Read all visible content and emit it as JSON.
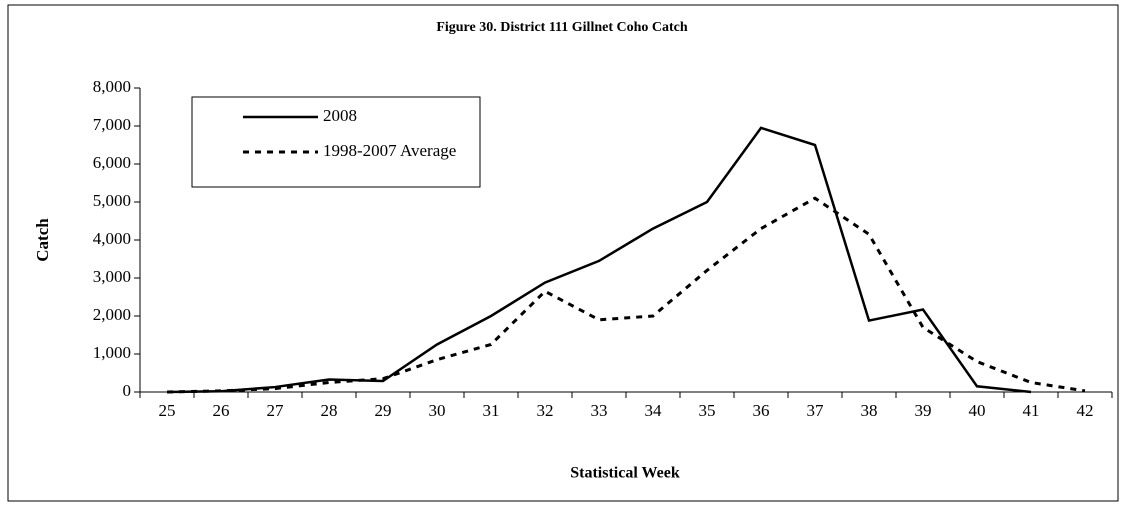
{
  "chart_data": {
    "type": "line",
    "title": "Figure 30.  District 111 Gillnet Coho Catch",
    "x_label": "Statistical Week",
    "y_label": "Catch",
    "categories": [
      "25",
      "26",
      "27",
      "28",
      "29",
      "30",
      "31",
      "32",
      "33",
      "34",
      "35",
      "36",
      "37",
      "38",
      "39",
      "40",
      "41",
      "42"
    ],
    "series": [
      {
        "name": "2008",
        "color": "#000000",
        "dash": "solid",
        "values": [
          0,
          20,
          130,
          330,
          290,
          1250,
          2000,
          2880,
          3450,
          4300,
          5000,
          6950,
          6500,
          1880,
          2170,
          150,
          0,
          null
        ]
      },
      {
        "name": "1998-2007 Average",
        "color": "#000000",
        "dash": "dashed",
        "values": [
          0,
          30,
          90,
          250,
          350,
          850,
          1250,
          2650,
          1900,
          2000,
          3200,
          4300,
          5100,
          4150,
          1700,
          800,
          250,
          30
        ]
      }
    ],
    "ylim": [
      0,
      8000
    ],
    "yticks": [
      0,
      {
        "value": 1000,
        "label": "1,000"
      },
      {
        "value": 2000,
        "label": "2,000"
      },
      {
        "value": 3000,
        "label": "3,000"
      },
      {
        "value": 4000,
        "label": "4,000"
      },
      {
        "value": 5000,
        "label": "5,000"
      },
      {
        "value": 6000,
        "label": "6,000"
      },
      {
        "value": 7000,
        "label": "7,000"
      },
      {
        "value": 8000,
        "label": "8,000"
      }
    ],
    "grid": false,
    "legend": "upper left"
  }
}
